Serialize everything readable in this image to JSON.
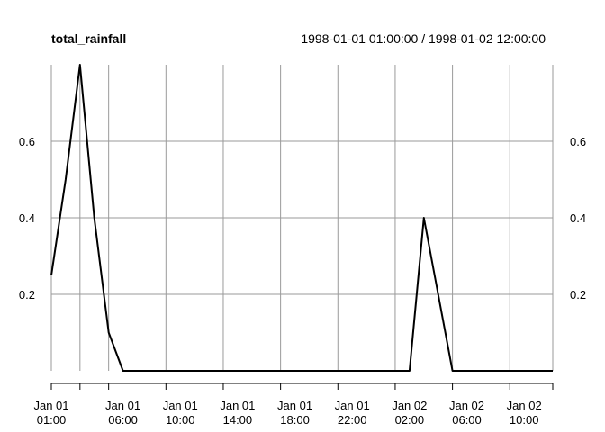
{
  "chart_data": {
    "type": "line",
    "title": "total_rainfall",
    "subtitle": "1998-01-01 01:00:00 / 1998-01-02 12:00:00",
    "x_range": [
      "1998-01-01 01:00:00",
      "1998-01-02 12:00:00"
    ],
    "ylim": [
      0,
      0.8
    ],
    "y_ticks": [
      0.2,
      0.4,
      0.6
    ],
    "y_tick_labels": [
      "0.2",
      "0.4",
      "0.6"
    ],
    "grid": true,
    "x_ticks": [
      {
        "x": "1998-01-01 01:00:00",
        "label": [
          "Jan 01",
          "01:00"
        ]
      },
      {
        "x": "1998-01-01 06:00:00",
        "label": [
          "Jan 01",
          "06:00"
        ]
      },
      {
        "x": "1998-01-01 10:00:00",
        "label": [
          "Jan 01",
          "10:00"
        ]
      },
      {
        "x": "1998-01-01 14:00:00",
        "label": [
          "Jan 01",
          "14:00"
        ]
      },
      {
        "x": "1998-01-01 18:00:00",
        "label": [
          "Jan 01",
          "18:00"
        ]
      },
      {
        "x": "1998-01-01 22:00:00",
        "label": [
          "Jan 01",
          "22:00"
        ]
      },
      {
        "x": "1998-01-02 02:00:00",
        "label": [
          "Jan 02",
          "02:00"
        ]
      },
      {
        "x": "1998-01-02 06:00:00",
        "label": [
          "Jan 02",
          "06:00"
        ]
      },
      {
        "x": "1998-01-02 10:00:00",
        "label": [
          "Jan 02",
          "10:00"
        ]
      }
    ],
    "x_minor_ticks": [
      "1998-01-01 01:00:00",
      "1998-01-01 03:00:00",
      "1998-01-01 05:00:00",
      "1998-01-01 09:00:00",
      "1998-01-01 13:00:00",
      "1998-01-01 17:00:00",
      "1998-01-01 21:00:00",
      "1998-01-02 01:00:00",
      "1998-01-02 05:00:00",
      "1998-01-02 09:00:00",
      "1998-01-02 12:00:00"
    ],
    "x_grid": [
      "1998-01-01 01:00:00",
      "1998-01-01 03:00:00",
      "1998-01-01 05:00:00",
      "1998-01-01 09:00:00",
      "1998-01-01 13:00:00",
      "1998-01-01 17:00:00",
      "1998-01-01 21:00:00",
      "1998-01-02 01:00:00",
      "1998-01-02 05:00:00",
      "1998-01-02 09:00:00",
      "1998-01-02 12:00:00"
    ],
    "series": [
      {
        "color": "#000000",
        "x": [
          "1998-01-01 01:00:00",
          "1998-01-01 02:00:00",
          "1998-01-01 03:00:00",
          "1998-01-01 04:00:00",
          "1998-01-01 05:00:00",
          "1998-01-01 06:00:00",
          "1998-01-01 07:00:00",
          "1998-01-01 08:00:00",
          "1998-01-01 09:00:00",
          "1998-01-01 10:00:00",
          "1998-01-01 11:00:00",
          "1998-01-01 12:00:00",
          "1998-01-01 13:00:00",
          "1998-01-01 14:00:00",
          "1998-01-01 15:00:00",
          "1998-01-01 16:00:00",
          "1998-01-01 17:00:00",
          "1998-01-01 18:00:00",
          "1998-01-01 19:00:00",
          "1998-01-01 20:00:00",
          "1998-01-01 21:00:00",
          "1998-01-01 22:00:00",
          "1998-01-01 23:00:00",
          "1998-01-02 00:00:00",
          "1998-01-02 01:00:00",
          "1998-01-02 02:00:00",
          "1998-01-02 03:00:00",
          "1998-01-02 04:00:00",
          "1998-01-02 05:00:00",
          "1998-01-02 06:00:00",
          "1998-01-02 07:00:00",
          "1998-01-02 08:00:00",
          "1998-01-02 09:00:00",
          "1998-01-02 10:00:00",
          "1998-01-02 11:00:00",
          "1998-01-02 12:00:00"
        ],
        "values": [
          0.25,
          0.5,
          0.8,
          0.4,
          0.1,
          0,
          0,
          0,
          0,
          0,
          0,
          0,
          0,
          0,
          0,
          0,
          0,
          0,
          0,
          0,
          0,
          0,
          0,
          0,
          0,
          0,
          0.4,
          0.2,
          0,
          0,
          0,
          0,
          0,
          0,
          0,
          0
        ]
      }
    ]
  }
}
